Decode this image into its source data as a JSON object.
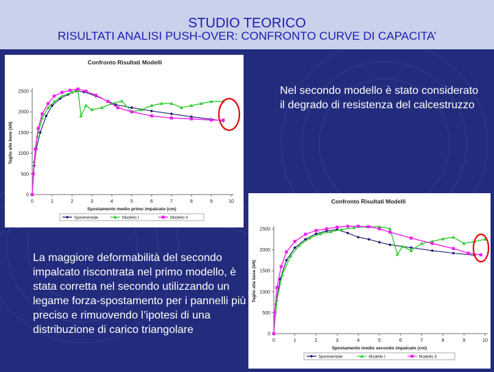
{
  "slide": {
    "title": "STUDIO TEORICO",
    "subtitle": "RISULTATI ANALISI PUSH-OVER: CONFRONTO CURVE DI CAPACITA’",
    "note_right": "Nel secondo modello è stato considerato il degrado di resistenza del calcestruzzo",
    "note_left": "La maggiore deformabilità del secondo impalcato riscontrata nel primo modello, è stata corretta nel secondo utilizzando un legame forza-spostamento per i pannelli più preciso e rimuovendo l’ipotesi di una distribuzione di carico triangolare",
    "colors": {
      "background": "#232c7c",
      "header": "#c9d2ea",
      "title_text": "#1c1cb0",
      "highlight_circle": "#e01010"
    }
  },
  "chart_data": [
    {
      "type": "line",
      "title": "Confronto Risultati Modelli",
      "xlabel": "Spostamento medio primo impalcato (cm)",
      "ylabel": "Taglio alla base (kN)",
      "xlim": [
        0,
        10
      ],
      "ylim": [
        0,
        2500
      ],
      "x_ticks": [
        "0",
        "1",
        "2",
        "3",
        "4",
        "5",
        "6",
        "7",
        "8",
        "9",
        "10"
      ],
      "y_ticks": [
        "0",
        "500",
        "1000",
        "1500",
        "2000",
        "2500"
      ],
      "grid": false,
      "legend_position": "bottom",
      "highlight": "red ellipse around the curves near x = 9.5 cm",
      "series": [
        {
          "name": "Sperimentale",
          "color": "#1a1a6e",
          "marker": "diamond",
          "points": [
            [
              0,
              0
            ],
            [
              0.1,
              700
            ],
            [
              0.2,
              1100
            ],
            [
              0.4,
              1500
            ],
            [
              0.7,
              1900
            ],
            [
              1.0,
              2150
            ],
            [
              1.4,
              2320
            ],
            [
              1.8,
              2420
            ],
            [
              2.2,
              2500
            ],
            [
              2.6,
              2480
            ],
            [
              3.2,
              2380
            ],
            [
              3.8,
              2260
            ],
            [
              4.2,
              2170
            ],
            [
              5.0,
              2100
            ],
            [
              6.0,
              2020
            ],
            [
              7.0,
              1950
            ],
            [
              8.0,
              1880
            ],
            [
              9.0,
              1820
            ],
            [
              9.6,
              1780
            ]
          ]
        },
        {
          "name": "Modello I",
          "color": "#33cc33",
          "marker": "triangle",
          "points": [
            [
              0,
              0
            ],
            [
              0.1,
              800
            ],
            [
              0.25,
              1400
            ],
            [
              0.5,
              1850
            ],
            [
              0.8,
              2100
            ],
            [
              1.1,
              2250
            ],
            [
              1.5,
              2380
            ],
            [
              2.0,
              2470
            ],
            [
              2.3,
              2520
            ],
            [
              2.45,
              1900
            ],
            [
              2.7,
              2150
            ],
            [
              3.0,
              2050
            ],
            [
              3.5,
              2100
            ],
            [
              4.0,
              2200
            ],
            [
              4.5,
              2260
            ],
            [
              5.0,
              2000
            ],
            [
              5.5,
              2050
            ],
            [
              6.0,
              2150
            ],
            [
              6.5,
              2200
            ],
            [
              7.0,
              2200
            ],
            [
              7.5,
              2100
            ],
            [
              8.0,
              2150
            ],
            [
              8.5,
              2200
            ],
            [
              9.0,
              2250
            ],
            [
              9.6,
              2250
            ]
          ]
        },
        {
          "name": "Modello II",
          "color": "#ee22ee",
          "marker": "square",
          "points": [
            [
              0,
              0
            ],
            [
              0.05,
              500
            ],
            [
              0.15,
              1100
            ],
            [
              0.3,
              1600
            ],
            [
              0.5,
              1950
            ],
            [
              0.8,
              2200
            ],
            [
              1.1,
              2380
            ],
            [
              1.5,
              2470
            ],
            [
              1.9,
              2520
            ],
            [
              2.3,
              2550
            ],
            [
              2.7,
              2500
            ],
            [
              3.2,
              2400
            ],
            [
              3.8,
              2250
            ],
            [
              4.3,
              2100
            ],
            [
              5.0,
              2000
            ],
            [
              6.0,
              1900
            ],
            [
              7.0,
              1850
            ],
            [
              8.0,
              1830
            ],
            [
              9.0,
              1800
            ],
            [
              9.6,
              1800
            ]
          ]
        }
      ]
    },
    {
      "type": "line",
      "title": "Confronto Risultati Modelli",
      "xlabel": "Spostamento medio secondo impalcato (cm)",
      "ylabel": "Taglio alla base (kN)",
      "xlim": [
        0,
        10
      ],
      "ylim": [
        0,
        2500
      ],
      "x_ticks": [
        "0",
        "1",
        "2",
        "3",
        "4",
        "5",
        "6",
        "7",
        "8",
        "9",
        "10"
      ],
      "y_ticks": [
        "0",
        "500",
        "1000",
        "1500",
        "2000",
        "2500"
      ],
      "grid": false,
      "legend_position": "bottom",
      "highlight": "red ellipse around the curves near x = 9.5 cm",
      "series": [
        {
          "name": "Sperimentale",
          "color": "#1a1a6e",
          "marker": "diamond",
          "points": [
            [
              0,
              0
            ],
            [
              0.1,
              700
            ],
            [
              0.3,
              1300
            ],
            [
              0.6,
              1750
            ],
            [
              1.0,
              2050
            ],
            [
              1.5,
              2250
            ],
            [
              2.0,
              2380
            ],
            [
              2.5,
              2450
            ],
            [
              3.0,
              2480
            ],
            [
              3.5,
              2400
            ],
            [
              4.0,
              2300
            ],
            [
              4.5,
              2250
            ],
            [
              5.0,
              2180
            ],
            [
              5.5,
              2120
            ],
            [
              6.5,
              2050
            ],
            [
              7.5,
              1980
            ],
            [
              8.5,
              1920
            ],
            [
              9.5,
              1870
            ]
          ]
        },
        {
          "name": "Modello I",
          "color": "#33cc33",
          "marker": "triangle",
          "points": [
            [
              0,
              0
            ],
            [
              0.15,
              800
            ],
            [
              0.4,
              1400
            ],
            [
              0.8,
              1850
            ],
            [
              1.2,
              2100
            ],
            [
              1.7,
              2280
            ],
            [
              2.2,
              2380
            ],
            [
              2.7,
              2430
            ],
            [
              3.2,
              2480
            ],
            [
              3.8,
              2530
            ],
            [
              4.4,
              2550
            ],
            [
              5.0,
              2550
            ],
            [
              5.5,
              2500
            ],
            [
              5.85,
              1890
            ],
            [
              6.1,
              2080
            ],
            [
              6.5,
              1980
            ],
            [
              7.0,
              2150
            ],
            [
              7.5,
              2200
            ],
            [
              8.0,
              2260
            ],
            [
              8.5,
              2300
            ],
            [
              9.0,
              2150
            ],
            [
              9.5,
              2200
            ],
            [
              10.0,
              2250
            ]
          ]
        },
        {
          "name": "Modello II",
          "color": "#ee22ee",
          "marker": "square",
          "points": [
            [
              0,
              0
            ],
            [
              0.05,
              500
            ],
            [
              0.15,
              1100
            ],
            [
              0.35,
              1600
            ],
            [
              0.6,
              1950
            ],
            [
              1.0,
              2200
            ],
            [
              1.5,
              2370
            ],
            [
              2.0,
              2460
            ],
            [
              2.5,
              2500
            ],
            [
              3.0,
              2540
            ],
            [
              3.5,
              2560
            ],
            [
              4.0,
              2560
            ],
            [
              4.5,
              2550
            ],
            [
              5.0,
              2500
            ],
            [
              5.5,
              2420
            ],
            [
              6.5,
              2280
            ],
            [
              7.5,
              2150
            ],
            [
              8.5,
              2030
            ],
            [
              9.2,
              1920
            ],
            [
              9.8,
              1880
            ]
          ]
        }
      ]
    }
  ]
}
